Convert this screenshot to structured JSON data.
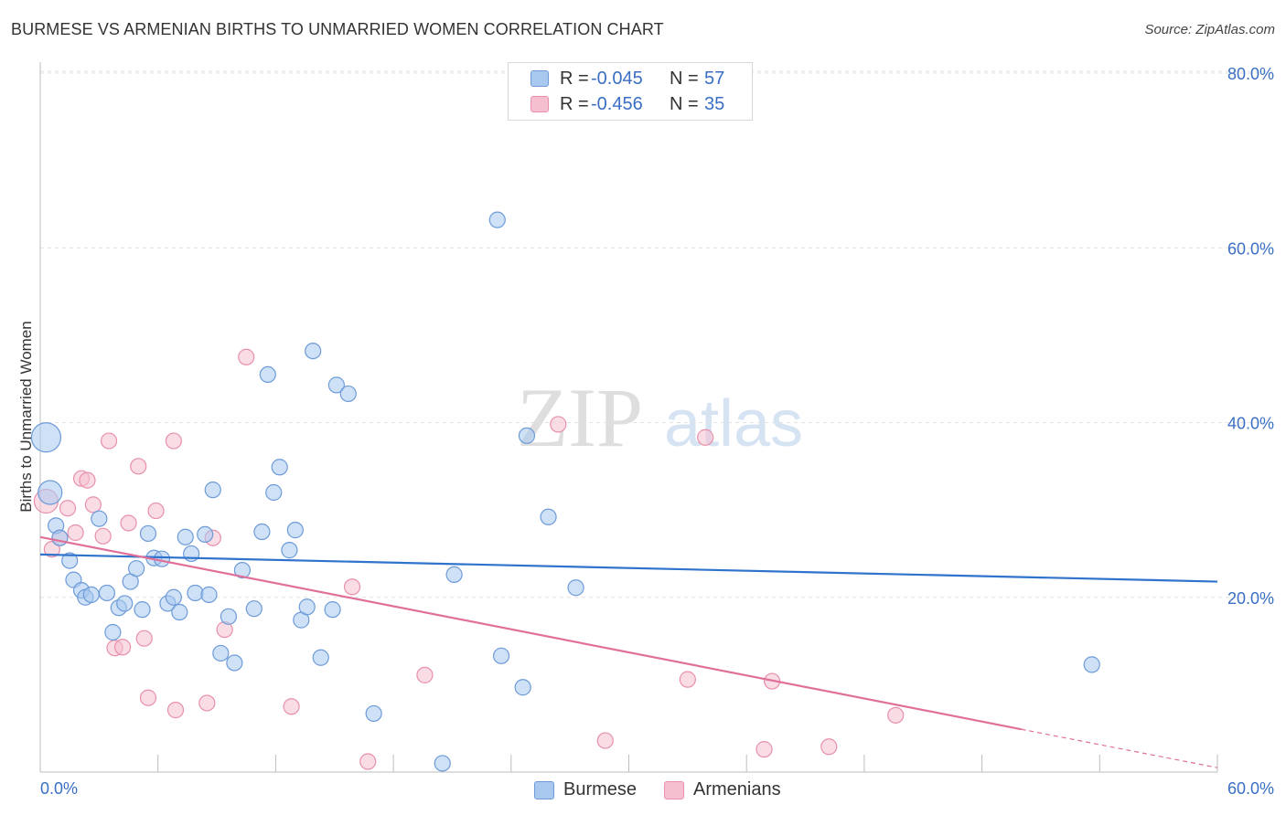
{
  "header": {
    "title": "BURMESE VS ARMENIAN BIRTHS TO UNMARRIED WOMEN CORRELATION CHART",
    "source": "Source: ZipAtlas.com"
  },
  "watermark": {
    "zip": "ZIP",
    "atlas": "atlas"
  },
  "colors": {
    "burmese_fill": "#a8c8f0",
    "burmese_stroke": "#6d9bd8",
    "burmese_line": "#2f73cc",
    "armenian_fill": "#f6bfd0",
    "armenian_stroke": "#e890ac",
    "armenian_line": "#e0709a",
    "axis_text": "#3a6fc4",
    "grid": "#e2e2e2"
  },
  "legend": {
    "rows": [
      {
        "r_label": "R =",
        "r_value": "-0.045",
        "n_label": "N =",
        "n_value": "57"
      },
      {
        "r_label": "R =",
        "r_value": "-0.456",
        "n_label": "N =",
        "n_value": "35"
      }
    ]
  },
  "bottom_legend": {
    "items": [
      "Burmese",
      "Armenians"
    ]
  },
  "chart_data": {
    "type": "scatter",
    "title": "BURMESE VS ARMENIAN BIRTHS TO UNMARRIED WOMEN CORRELATION CHART",
    "xlabel": "",
    "ylabel": "Births to Unmarried Women",
    "xlim": [
      0,
      60
    ],
    "ylim": [
      0,
      80
    ],
    "x_tick_labels": [
      "0.0%",
      "60.0%"
    ],
    "y_ticks": [
      20,
      40,
      60,
      80
    ],
    "y_tick_labels": [
      "20.0%",
      "40.0%",
      "60.0%",
      "80.0%"
    ],
    "series": [
      {
        "name": "Burmese",
        "R": -0.045,
        "N": 57,
        "trend": {
          "x": [
            0,
            60
          ],
          "y": [
            24.9,
            21.8
          ]
        },
        "points": [
          {
            "x": 0.3,
            "y": 38.3,
            "s": 3
          },
          {
            "x": 0.5,
            "y": 32.0,
            "s": 2
          },
          {
            "x": 0.8,
            "y": 28.2,
            "s": 1
          },
          {
            "x": 1.0,
            "y": 26.8,
            "s": 1
          },
          {
            "x": 1.5,
            "y": 24.2,
            "s": 1
          },
          {
            "x": 1.7,
            "y": 22.0,
            "s": 1
          },
          {
            "x": 2.1,
            "y": 20.8,
            "s": 1
          },
          {
            "x": 2.3,
            "y": 20.0,
            "s": 1
          },
          {
            "x": 2.6,
            "y": 20.3,
            "s": 1
          },
          {
            "x": 3.0,
            "y": 29.0,
            "s": 1
          },
          {
            "x": 3.4,
            "y": 20.5,
            "s": 1
          },
          {
            "x": 3.7,
            "y": 16.0,
            "s": 1
          },
          {
            "x": 4.0,
            "y": 18.8,
            "s": 1
          },
          {
            "x": 4.3,
            "y": 19.3,
            "s": 1
          },
          {
            "x": 4.6,
            "y": 21.8,
            "s": 1
          },
          {
            "x": 4.9,
            "y": 23.3,
            "s": 1
          },
          {
            "x": 5.2,
            "y": 18.6,
            "s": 1
          },
          {
            "x": 5.5,
            "y": 27.3,
            "s": 1
          },
          {
            "x": 5.8,
            "y": 24.5,
            "s": 1
          },
          {
            "x": 6.2,
            "y": 24.4,
            "s": 1
          },
          {
            "x": 6.5,
            "y": 19.3,
            "s": 1
          },
          {
            "x": 6.8,
            "y": 20.0,
            "s": 1
          },
          {
            "x": 7.1,
            "y": 18.3,
            "s": 1
          },
          {
            "x": 7.4,
            "y": 26.9,
            "s": 1
          },
          {
            "x": 7.7,
            "y": 25.0,
            "s": 1
          },
          {
            "x": 7.9,
            "y": 20.5,
            "s": 1
          },
          {
            "x": 8.4,
            "y": 27.2,
            "s": 1
          },
          {
            "x": 8.6,
            "y": 20.3,
            "s": 1
          },
          {
            "x": 8.8,
            "y": 32.3,
            "s": 1
          },
          {
            "x": 9.2,
            "y": 13.6,
            "s": 1
          },
          {
            "x": 9.6,
            "y": 17.8,
            "s": 1
          },
          {
            "x": 9.9,
            "y": 12.5,
            "s": 1
          },
          {
            "x": 10.3,
            "y": 23.1,
            "s": 1
          },
          {
            "x": 10.9,
            "y": 18.7,
            "s": 1
          },
          {
            "x": 11.3,
            "y": 27.5,
            "s": 1
          },
          {
            "x": 11.6,
            "y": 45.5,
            "s": 1
          },
          {
            "x": 11.9,
            "y": 32.0,
            "s": 1
          },
          {
            "x": 12.2,
            "y": 34.9,
            "s": 1
          },
          {
            "x": 12.7,
            "y": 25.4,
            "s": 1
          },
          {
            "x": 13.0,
            "y": 27.7,
            "s": 1
          },
          {
            "x": 13.3,
            "y": 17.4,
            "s": 1
          },
          {
            "x": 13.6,
            "y": 18.9,
            "s": 1
          },
          {
            "x": 13.9,
            "y": 48.2,
            "s": 1
          },
          {
            "x": 14.3,
            "y": 13.1,
            "s": 1
          },
          {
            "x": 14.9,
            "y": 18.6,
            "s": 1
          },
          {
            "x": 15.1,
            "y": 44.3,
            "s": 1
          },
          {
            "x": 15.7,
            "y": 43.3,
            "s": 1
          },
          {
            "x": 17.0,
            "y": 6.7,
            "s": 1
          },
          {
            "x": 20.5,
            "y": 1.0,
            "s": 1
          },
          {
            "x": 21.1,
            "y": 22.6,
            "s": 1
          },
          {
            "x": 23.3,
            "y": 63.2,
            "s": 1
          },
          {
            "x": 23.5,
            "y": 13.3,
            "s": 1
          },
          {
            "x": 24.6,
            "y": 9.7,
            "s": 1
          },
          {
            "x": 24.8,
            "y": 38.5,
            "s": 1
          },
          {
            "x": 25.9,
            "y": 29.2,
            "s": 1
          },
          {
            "x": 27.3,
            "y": 21.1,
            "s": 1
          },
          {
            "x": 53.6,
            "y": 12.3,
            "s": 1
          }
        ]
      },
      {
        "name": "Armenians",
        "R": -0.456,
        "N": 35,
        "trend": {
          "x": [
            0,
            50
          ],
          "y": [
            26.9,
            4.9
          ]
        },
        "trend_dashed": {
          "x": [
            50,
            60
          ],
          "y": [
            4.9,
            0.5
          ]
        },
        "points": [
          {
            "x": 0.3,
            "y": 31.0,
            "s": 2
          },
          {
            "x": 0.6,
            "y": 25.5,
            "s": 1
          },
          {
            "x": 1.0,
            "y": 26.8,
            "s": 1
          },
          {
            "x": 1.4,
            "y": 30.2,
            "s": 1
          },
          {
            "x": 1.8,
            "y": 27.4,
            "s": 1
          },
          {
            "x": 2.1,
            "y": 33.6,
            "s": 1
          },
          {
            "x": 2.4,
            "y": 33.4,
            "s": 1
          },
          {
            "x": 2.7,
            "y": 30.6,
            "s": 1
          },
          {
            "x": 3.2,
            "y": 27.0,
            "s": 1
          },
          {
            "x": 3.5,
            "y": 37.9,
            "s": 1
          },
          {
            "x": 3.8,
            "y": 14.2,
            "s": 1
          },
          {
            "x": 4.2,
            "y": 14.3,
            "s": 1
          },
          {
            "x": 4.5,
            "y": 28.5,
            "s": 1
          },
          {
            "x": 5.0,
            "y": 35.0,
            "s": 1
          },
          {
            "x": 5.3,
            "y": 15.3,
            "s": 1
          },
          {
            "x": 5.5,
            "y": 8.5,
            "s": 1
          },
          {
            "x": 5.9,
            "y": 29.9,
            "s": 1
          },
          {
            "x": 6.8,
            "y": 37.9,
            "s": 1
          },
          {
            "x": 6.9,
            "y": 7.1,
            "s": 1
          },
          {
            "x": 8.5,
            "y": 7.9,
            "s": 1
          },
          {
            "x": 8.8,
            "y": 26.8,
            "s": 1
          },
          {
            "x": 9.4,
            "y": 16.3,
            "s": 1
          },
          {
            "x": 10.5,
            "y": 47.5,
            "s": 1
          },
          {
            "x": 12.8,
            "y": 7.5,
            "s": 1
          },
          {
            "x": 15.9,
            "y": 21.2,
            "s": 1
          },
          {
            "x": 16.7,
            "y": 1.2,
            "s": 1
          },
          {
            "x": 19.6,
            "y": 11.1,
            "s": 1
          },
          {
            "x": 26.4,
            "y": 39.8,
            "s": 1
          },
          {
            "x": 28.8,
            "y": 3.6,
            "s": 1
          },
          {
            "x": 33.0,
            "y": 10.6,
            "s": 1
          },
          {
            "x": 33.9,
            "y": 38.3,
            "s": 1
          },
          {
            "x": 36.9,
            "y": 2.6,
            "s": 1
          },
          {
            "x": 37.3,
            "y": 10.4,
            "s": 1
          },
          {
            "x": 40.2,
            "y": 2.9,
            "s": 1
          },
          {
            "x": 43.6,
            "y": 6.5,
            "s": 1
          }
        ]
      }
    ]
  }
}
